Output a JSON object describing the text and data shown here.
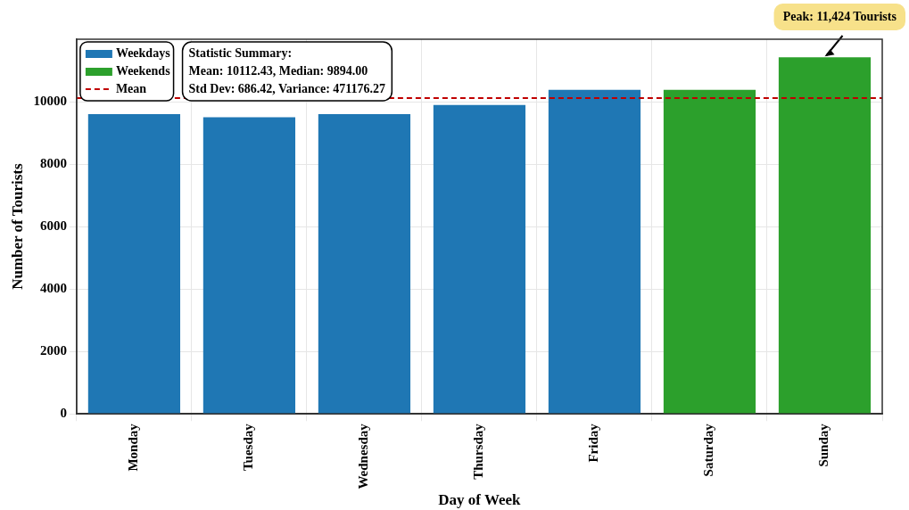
{
  "chart_data": {
    "type": "bar",
    "xlabel": "Day of Week",
    "ylabel": "Number of Tourists",
    "categories": [
      "Monday",
      "Tuesday",
      "Wednesday",
      "Thursday",
      "Friday",
      "Saturday",
      "Sunday"
    ],
    "series": [
      {
        "name": "Weekdays",
        "color": "#1f77b4",
        "values": [
          9600,
          9500,
          9600,
          9894,
          10380,
          null,
          null
        ]
      },
      {
        "name": "Weekends",
        "color": "#2ca02c",
        "values": [
          null,
          null,
          null,
          null,
          null,
          10380,
          11424
        ]
      }
    ],
    "ylim": [
      0,
      12000
    ],
    "yticks": [
      0,
      2000,
      4000,
      6000,
      8000,
      10000
    ],
    "grid": true,
    "legend": "top left",
    "ref_lines": [
      {
        "axis": "y",
        "value": 10112.43,
        "label": "Mean",
        "color": "#c00000",
        "line_style": "dashed"
      }
    ],
    "annotations": [
      "Statistic Summary:\nMean: 10112.43, Median: 9894.00\nStd Dev: 686.42, Variance: 471176.27",
      {
        "text": "Peak: 11,424 Tourists",
        "x": "Sunday",
        "y": 11424
      }
    ]
  }
}
